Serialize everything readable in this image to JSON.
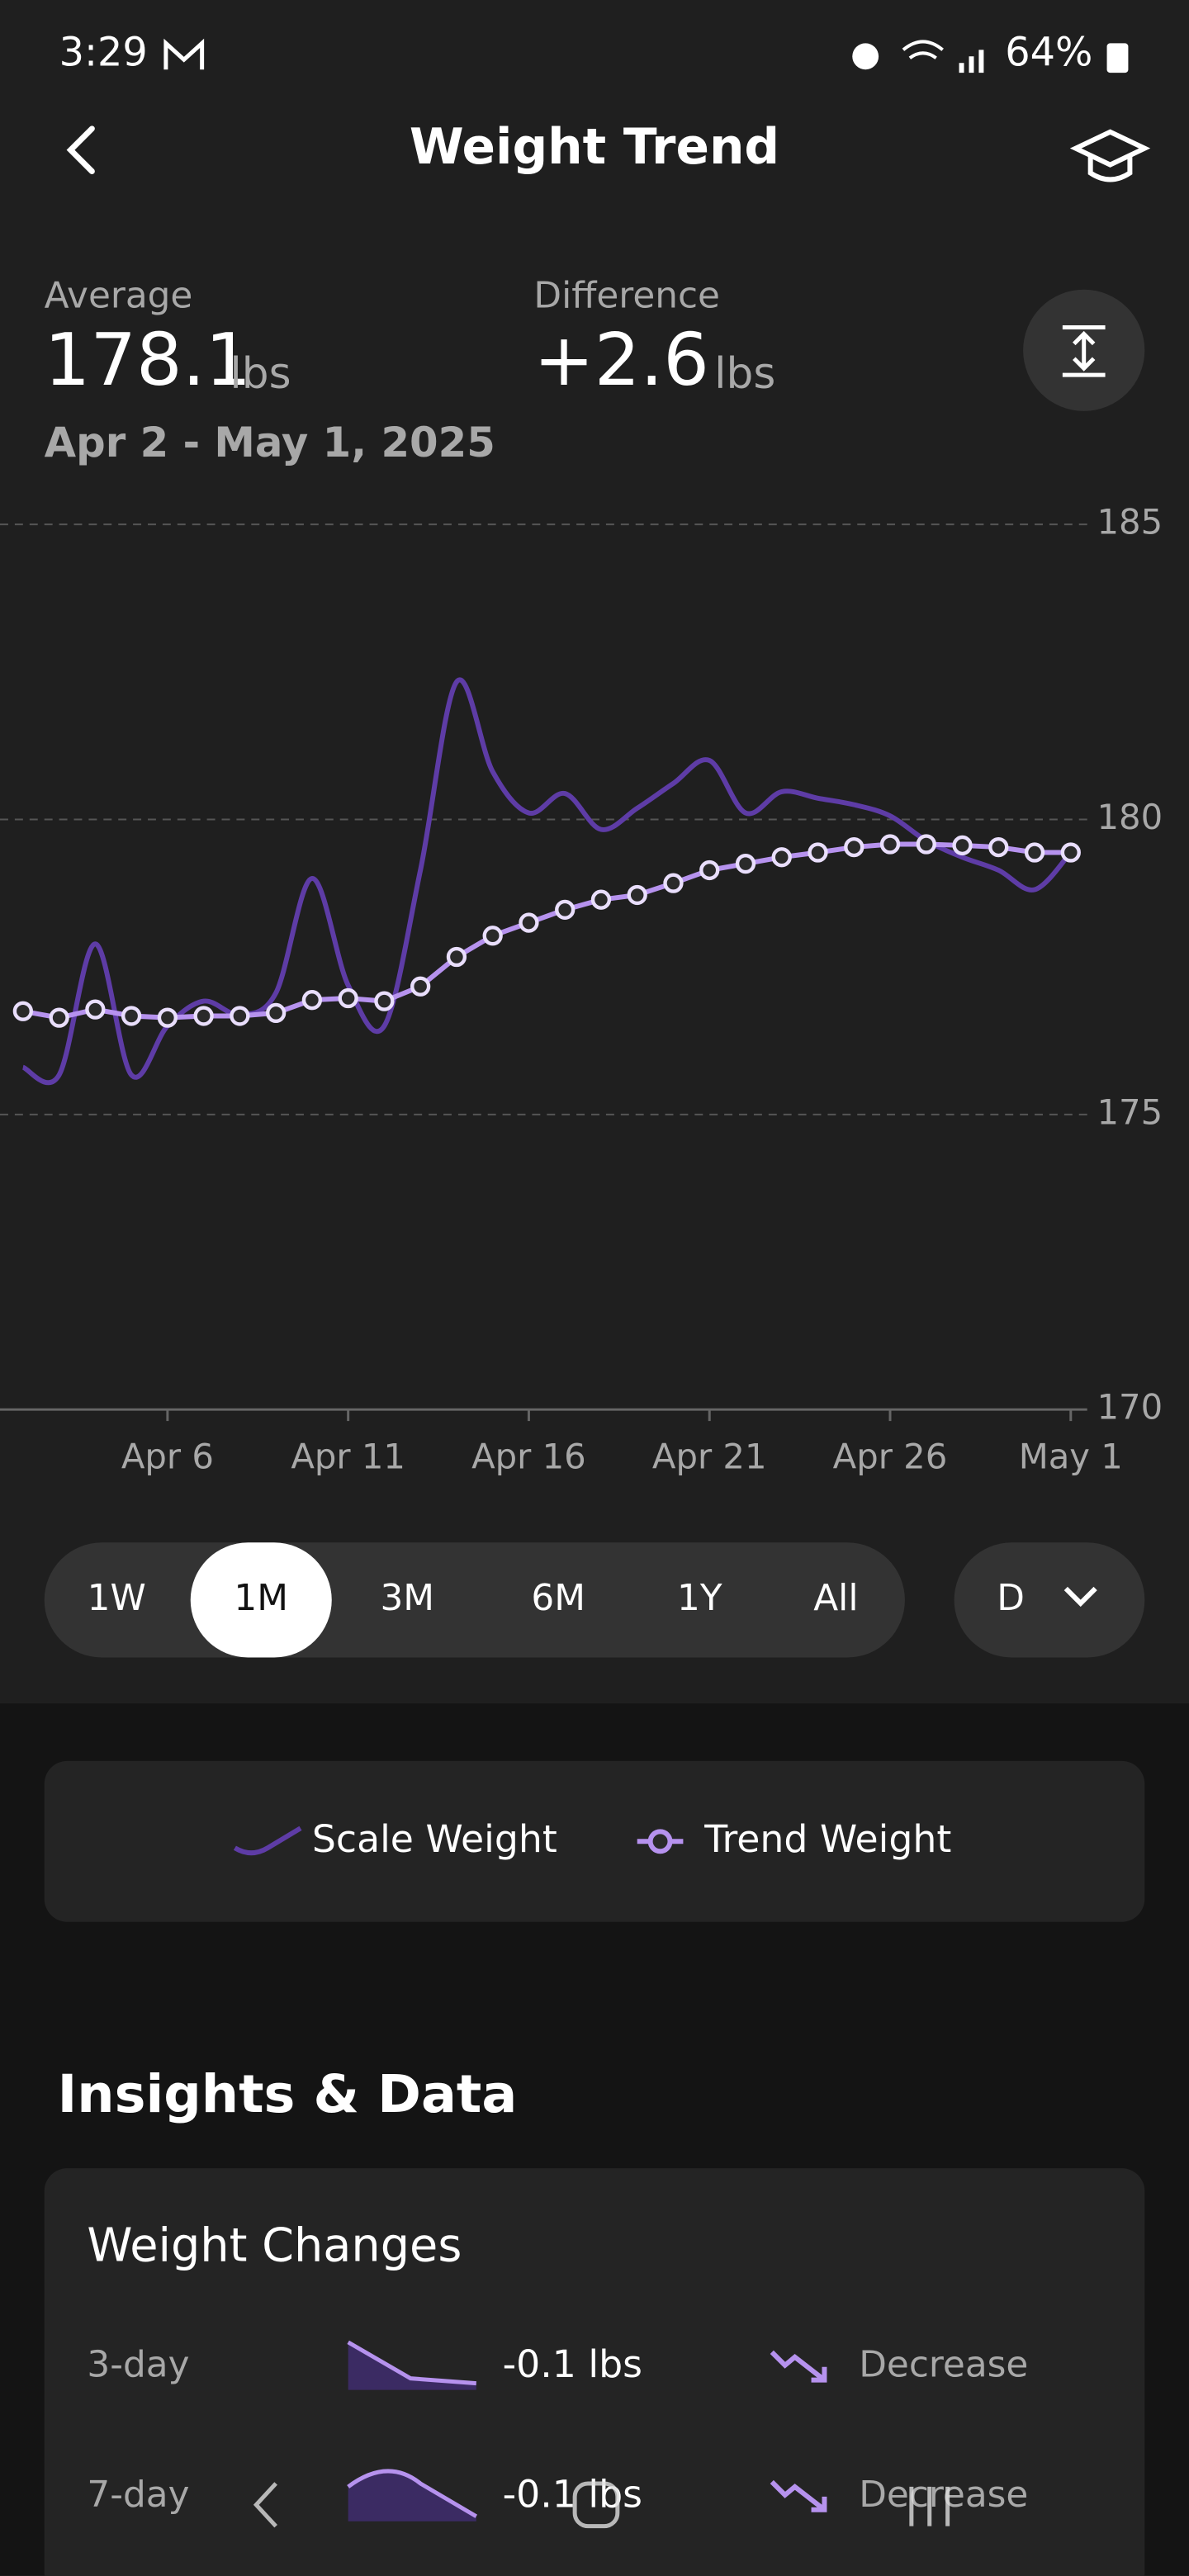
{
  "status_bar": {
    "time": "3:29",
    "battery": "64%"
  },
  "header": {
    "title": "Weight Trend"
  },
  "summary": {
    "average_label": "Average",
    "average": "178.1",
    "average_unit": "lbs",
    "difference_label": "Difference",
    "difference": "+2.6",
    "difference_unit": "lbs",
    "date_range": "Apr 2 - May 1, 2025"
  },
  "chart_data": {
    "type": "line",
    "categories": [
      null,
      null,
      null,
      null,
      "Apr 6",
      null,
      null,
      null,
      null,
      "Apr 11",
      null,
      null,
      null,
      null,
      "Apr 16",
      null,
      null,
      null,
      null,
      "Apr 21",
      null,
      null,
      null,
      null,
      "Apr 26",
      null,
      null,
      null,
      null,
      "May 1"
    ],
    "series": [
      {
        "name": "Scale Weight",
        "color": "#5e3ca6",
        "markers": false,
        "values": [
          175.8,
          175.67,
          177.89,
          175.67,
          176.5,
          176.92,
          176.69,
          177.06,
          179.0,
          177.19,
          176.5,
          179.14,
          182.33,
          180.81,
          180.11,
          180.44,
          179.83,
          180.19,
          180.61,
          181.0,
          180.11,
          180.47,
          180.36,
          180.25,
          180.06,
          179.64,
          179.36,
          179.14,
          178.81,
          179.44
        ]
      },
      {
        "name": "Trend Weight",
        "color": "#b692ee",
        "markers": true,
        "values": [
          176.75,
          176.64,
          176.78,
          176.67,
          176.64,
          176.67,
          176.67,
          176.72,
          176.94,
          176.97,
          176.92,
          177.17,
          177.67,
          178.03,
          178.25,
          178.47,
          178.64,
          178.72,
          178.92,
          179.14,
          179.25,
          179.36,
          179.44,
          179.53,
          179.58,
          179.58,
          179.56,
          179.53,
          179.44,
          179.44
        ]
      }
    ],
    "ylim": [
      170,
      185
    ],
    "yticks": [
      170,
      175,
      180,
      185
    ],
    "grid": true
  },
  "range_selector": {
    "options": [
      "1W",
      "1M",
      "3M",
      "6M",
      "1Y",
      "All"
    ],
    "selected_index": 1,
    "interval": "D"
  },
  "insights": {
    "title": "Insights & Data",
    "card_title": "Weight Changes",
    "rows": [
      {
        "period": "3-day",
        "change": "-0.1 lbs",
        "direction": "Decrease"
      },
      {
        "period": "7-day",
        "change": "-0.1 lbs",
        "direction": "Decrease"
      }
    ]
  }
}
